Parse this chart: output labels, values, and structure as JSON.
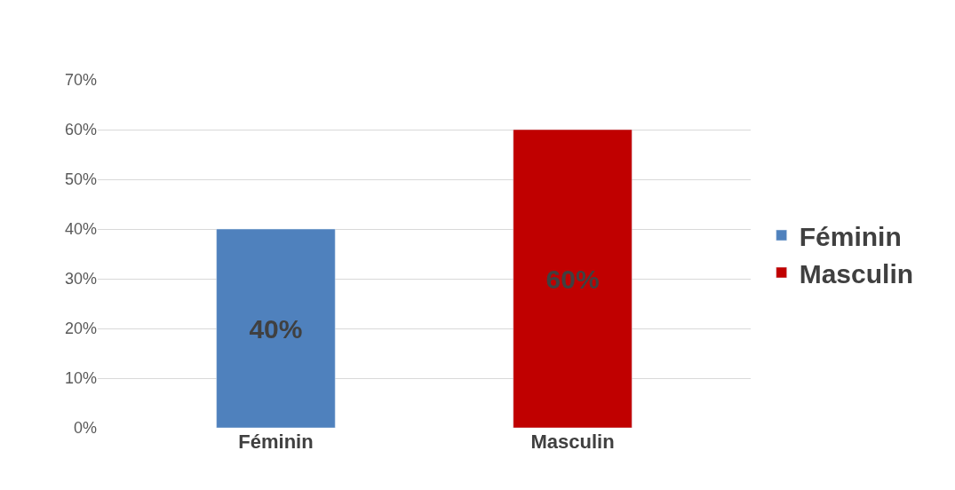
{
  "chart_data": {
    "type": "bar",
    "categories": [
      "Féminin",
      "Masculin"
    ],
    "series": [
      {
        "name": "Féminin",
        "color": "#4f81bd",
        "values": [
          40,
          null
        ],
        "value_labels": [
          "40%",
          null
        ]
      },
      {
        "name": "Masculin",
        "color": "#c00000",
        "values": [
          null,
          60
        ],
        "value_labels": [
          null,
          "60%"
        ]
      }
    ],
    "ylim": [
      0,
      70
    ],
    "yticks": [
      {
        "value": 0,
        "label": "0%"
      },
      {
        "value": 10,
        "label": "10%"
      },
      {
        "value": 20,
        "label": "20%"
      },
      {
        "value": 30,
        "label": "30%"
      },
      {
        "value": 40,
        "label": "40%"
      },
      {
        "value": 50,
        "label": "50%"
      },
      {
        "value": 60,
        "label": "60%"
      },
      {
        "value": 70,
        "label": "70%"
      }
    ],
    "grid": "y",
    "legend": "right"
  }
}
